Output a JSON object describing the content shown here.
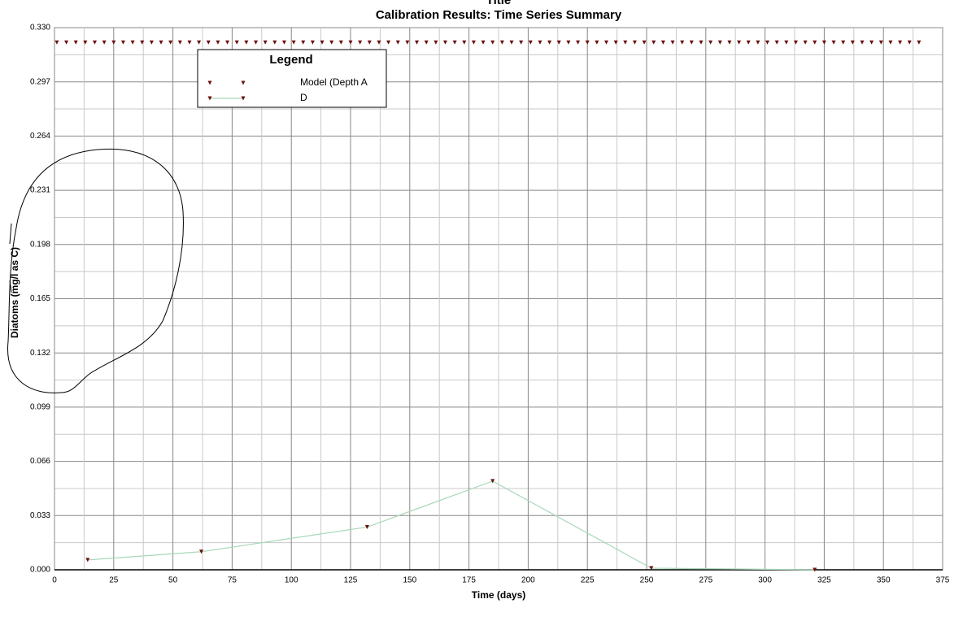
{
  "chart_data": {
    "type": "line",
    "title": "Title",
    "subtitle": "Calibration Results: Time Series Summary",
    "x_label": "Time (days)",
    "y_label": "Diatoms (mg/l as C)",
    "legend_title": "Legend",
    "legend": "upper left",
    "grid": true,
    "minor_grid": true,
    "xlim": [
      0,
      375
    ],
    "xticks": [
      0,
      25,
      50,
      75,
      100,
      125,
      150,
      175,
      200,
      225,
      250,
      275,
      300,
      325,
      350,
      375
    ],
    "ylim": [
      0,
      0.33
    ],
    "yticks": [
      {
        "value": 0,
        "label": "0.000"
      },
      {
        "value": 0.033,
        "label": "0.033"
      },
      {
        "value": 0.066,
        "label": "0.066"
      },
      {
        "value": 0.099,
        "label": "0.099"
      },
      {
        "value": 0.132,
        "label": "0.132"
      },
      {
        "value": 0.165,
        "label": "0.165"
      },
      {
        "value": 0.198,
        "label": "0.198"
      },
      {
        "value": 0.231,
        "label": "0.231"
      },
      {
        "value": 0.264,
        "label": "0.264"
      },
      {
        "value": 0.297,
        "label": "0.297"
      },
      {
        "value": 0.33,
        "label": "0.330"
      }
    ],
    "series": [
      {
        "name": "Model (Depth A",
        "color": "#6b0f0f",
        "line": false,
        "x": [
          1,
          5,
          9,
          13,
          17,
          21,
          25,
          29,
          33,
          37,
          41,
          45,
          49,
          53,
          57,
          61,
          65,
          69,
          73,
          77,
          81,
          85,
          89,
          93,
          97,
          101,
          105,
          109,
          113,
          117,
          121,
          125,
          129,
          133,
          137,
          141,
          145,
          149,
          153,
          157,
          161,
          165,
          169,
          173,
          177,
          181,
          185,
          189,
          193,
          197,
          201,
          205,
          209,
          213,
          217,
          221,
          225,
          229,
          233,
          237,
          241,
          245,
          249,
          253,
          257,
          261,
          265,
          269,
          273,
          277,
          281,
          285,
          289,
          293,
          297,
          301,
          305,
          309,
          313,
          317,
          321,
          325,
          329,
          333,
          337,
          341,
          345,
          349,
          353,
          357,
          361,
          365
        ],
        "values": [
          0.321,
          0.321,
          0.321,
          0.321,
          0.321,
          0.321,
          0.321,
          0.321,
          0.321,
          0.321,
          0.321,
          0.321,
          0.321,
          0.321,
          0.321,
          0.321,
          0.321,
          0.321,
          0.321,
          0.321,
          0.321,
          0.321,
          0.321,
          0.321,
          0.321,
          0.321,
          0.321,
          0.321,
          0.321,
          0.321,
          0.321,
          0.321,
          0.321,
          0.321,
          0.321,
          0.321,
          0.321,
          0.321,
          0.321,
          0.321,
          0.321,
          0.321,
          0.321,
          0.321,
          0.321,
          0.321,
          0.321,
          0.321,
          0.321,
          0.321,
          0.321,
          0.321,
          0.321,
          0.321,
          0.321,
          0.321,
          0.321,
          0.321,
          0.321,
          0.321,
          0.321,
          0.321,
          0.321,
          0.321,
          0.321,
          0.321,
          0.321,
          0.321,
          0.321,
          0.321,
          0.321,
          0.321,
          0.321,
          0.321,
          0.321,
          0.321,
          0.321,
          0.321,
          0.321,
          0.321,
          0.321,
          0.321,
          0.321,
          0.321,
          0.321,
          0.321,
          0.321,
          0.321,
          0.321,
          0.321,
          0.321,
          0.321
        ]
      },
      {
        "name": "D",
        "color": "#a8d8b8",
        "marker_color": "#6b0f0f",
        "line": true,
        "x": [
          14,
          62,
          132,
          185,
          252,
          321
        ],
        "values": [
          0.006,
          0.011,
          0.026,
          0.054,
          0.001,
          0
        ]
      }
    ]
  }
}
